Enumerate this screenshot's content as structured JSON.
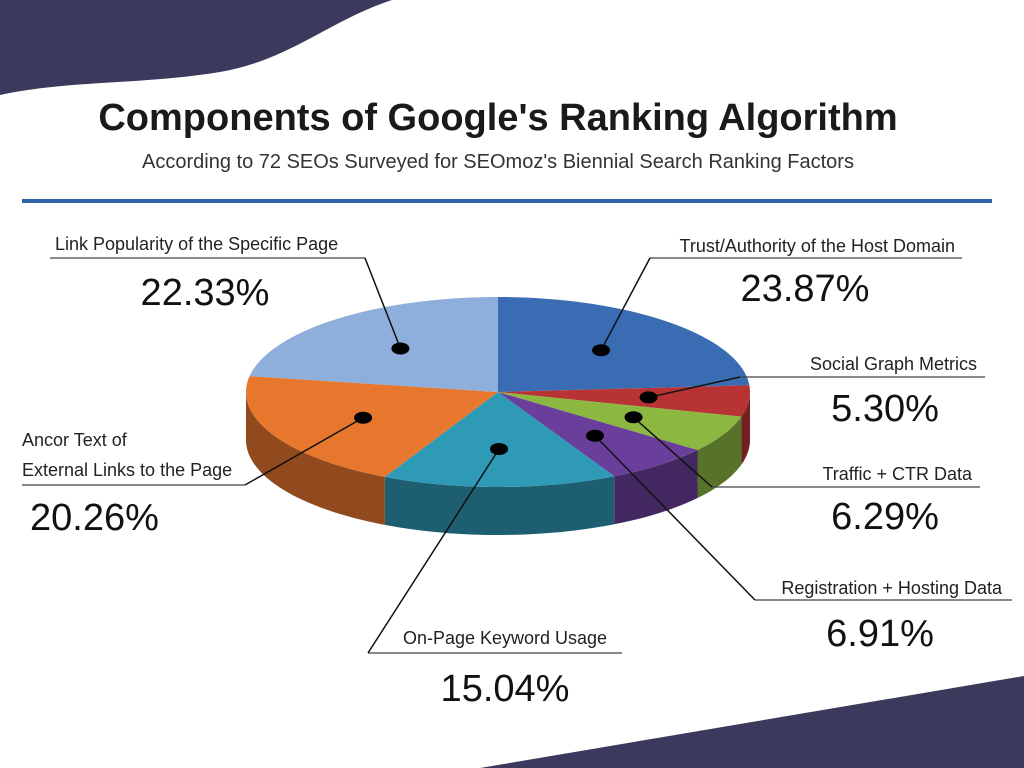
{
  "chart_data": {
    "type": "pie",
    "title": "Components of Google's Ranking Algorithm",
    "subtitle": "According to 72 SEOs Surveyed for SEOmoz's Biennial Search Ranking Factors",
    "categories": [
      "Trust/Authority of the Host Domain",
      "Social Graph Metrics",
      "Traffic + CTR Data",
      "Registration + Hosting Data",
      "On-Page Keyword Usage",
      "Ancor Text of\nExternal Links to the Page",
      "Link Popularity of the Specific Page"
    ],
    "values": [
      23.87,
      5.3,
      6.29,
      6.91,
      15.04,
      20.26,
      22.33
    ],
    "value_labels": [
      "23.87%",
      "5.30%",
      "6.29%",
      "6.91%",
      "15.04%",
      "20.26%",
      "22.33%"
    ],
    "colors": [
      "#3a6cb4",
      "#b83333",
      "#8cb842",
      "#6a3f9c",
      "#2f9ab6",
      "#e8772e",
      "#8eafdc"
    ]
  }
}
